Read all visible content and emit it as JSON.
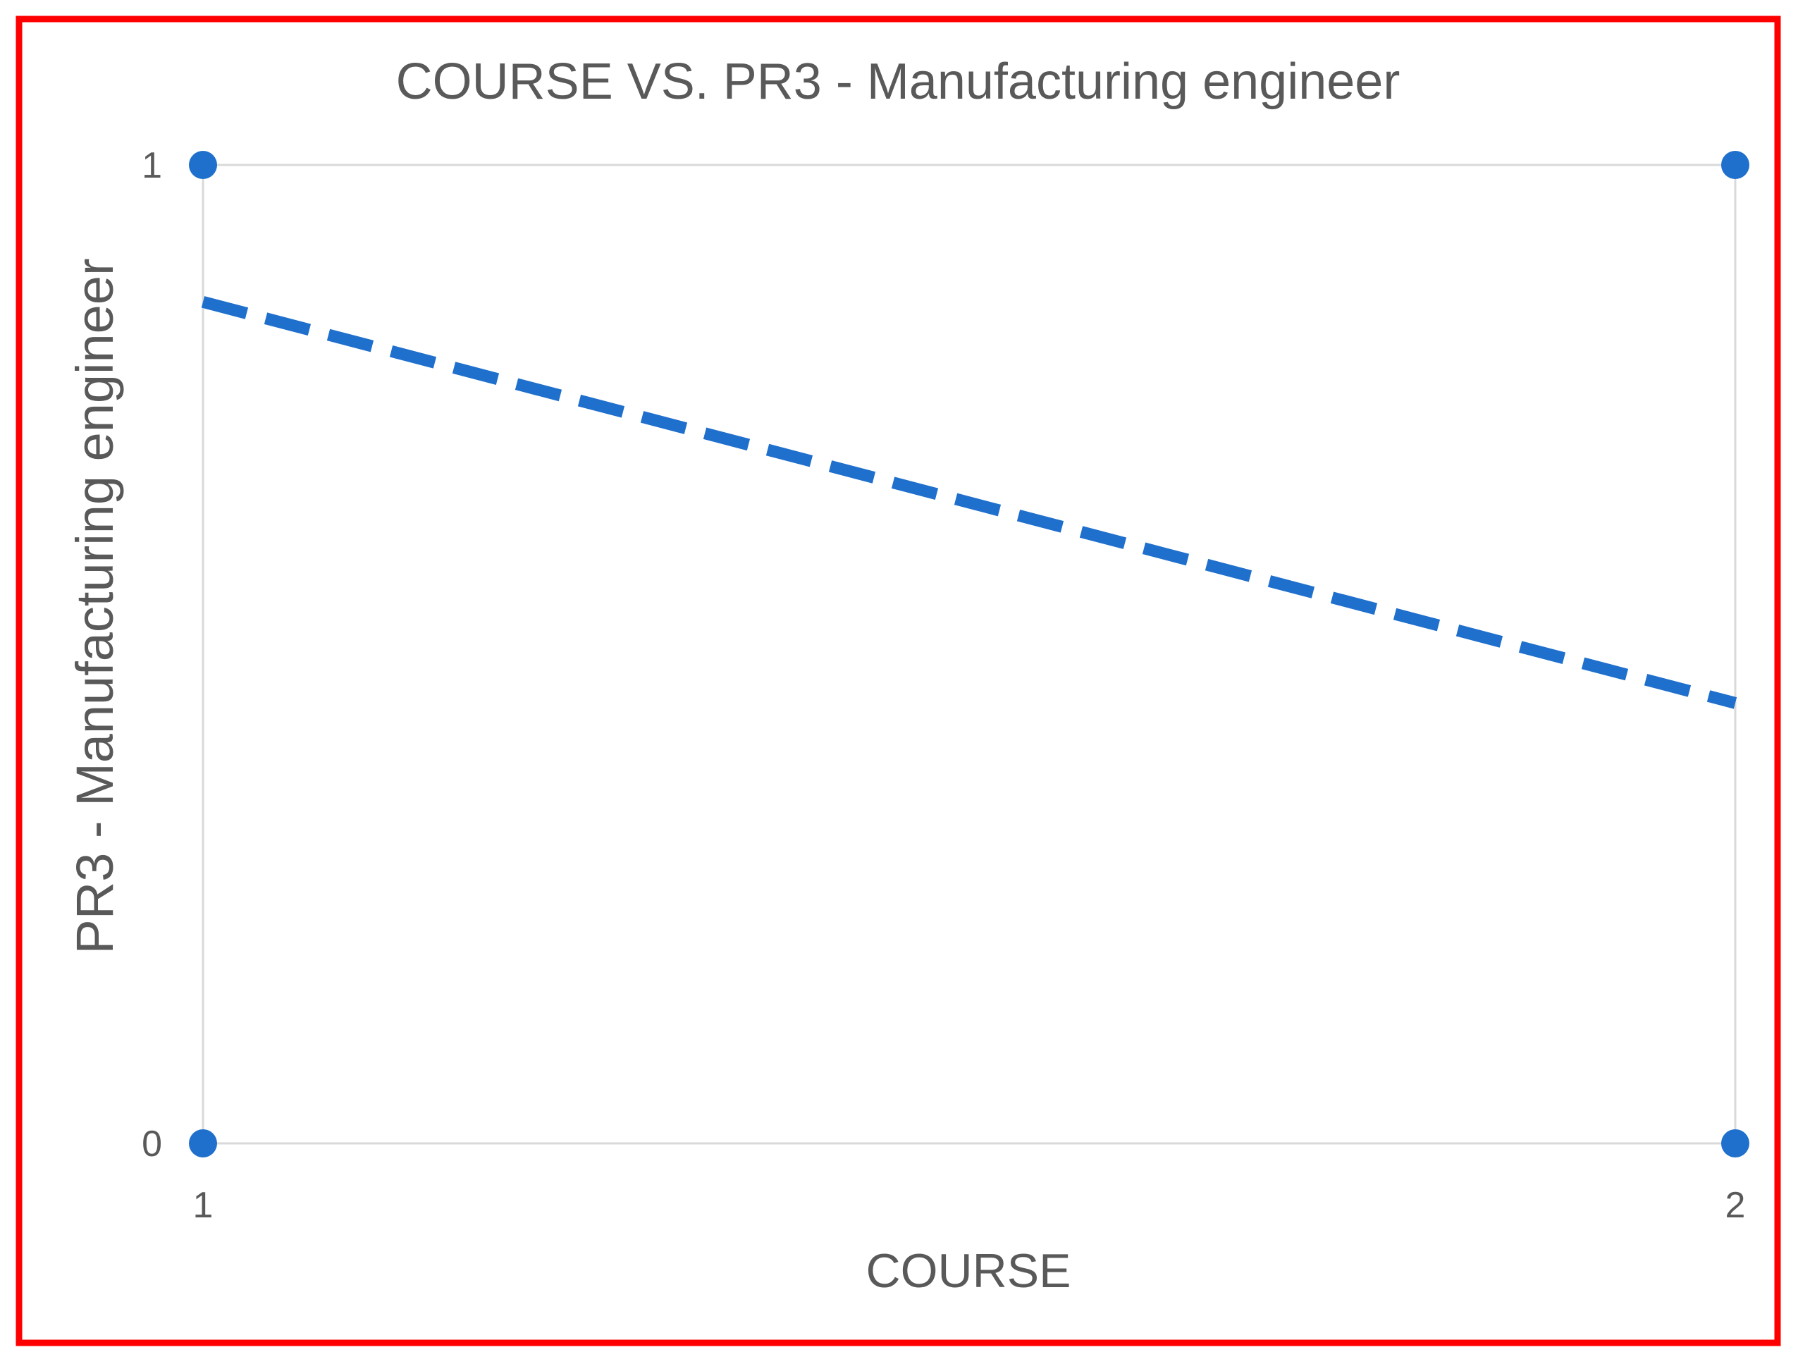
{
  "chart_data": {
    "type": "scatter",
    "title": "COURSE VS. PR3 - Manufacturing engineer",
    "xlabel": "COURSE",
    "ylabel": "PR3 - Manufacturing engineer",
    "xlim": [
      1,
      2
    ],
    "ylim": [
      0,
      1
    ],
    "x_ticks": [
      1,
      2
    ],
    "y_ticks": [
      0,
      1
    ],
    "grid": true,
    "points": [
      {
        "x": 1,
        "y": 1
      },
      {
        "x": 2,
        "y": 1
      },
      {
        "x": 1,
        "y": 0
      },
      {
        "x": 2,
        "y": 0
      }
    ],
    "trendline": {
      "style": "dashed",
      "x": [
        1,
        2
      ],
      "y": [
        0.86,
        0.45
      ]
    },
    "colors": {
      "series": "#1F6FCC",
      "frame_border": "#FF0000",
      "grid": "#D9D9D9",
      "text": "#595959"
    }
  }
}
